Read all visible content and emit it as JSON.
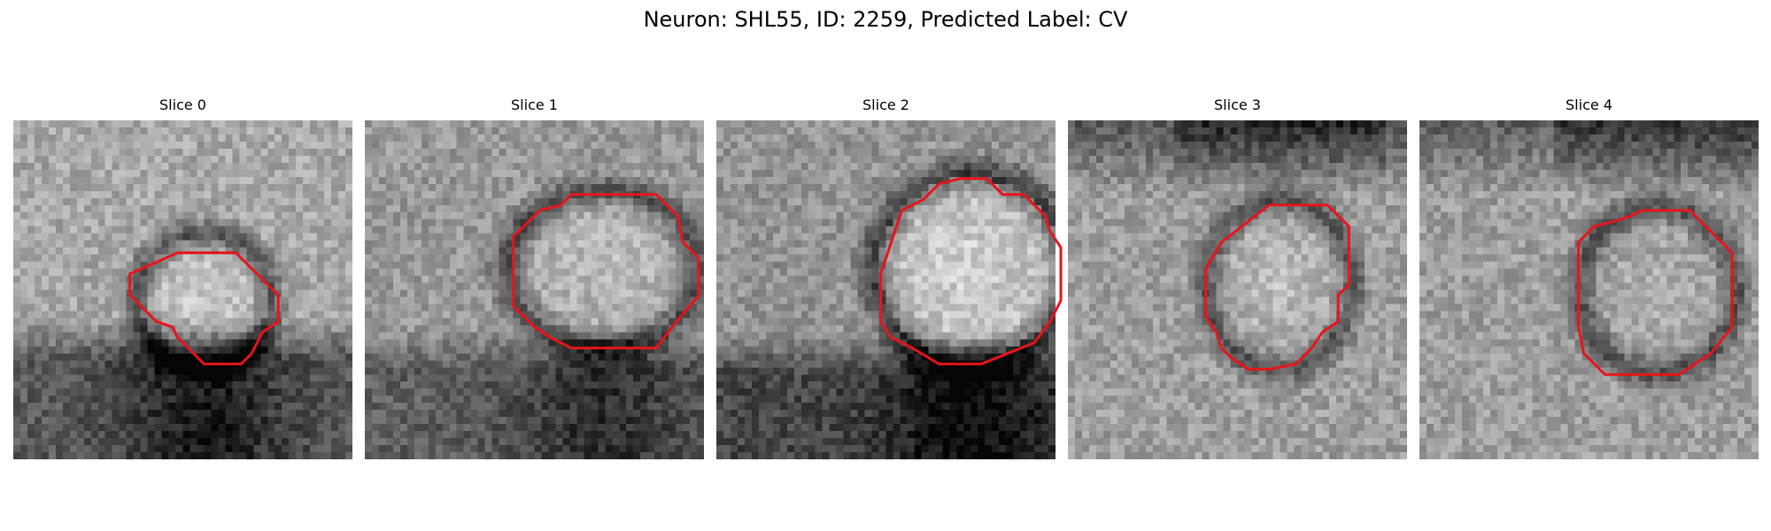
{
  "figure": {
    "title": "Neuron: SHL55, ID: 2259, Predicted Label: CV"
  },
  "colors": {
    "outline": "#e8141a",
    "colormap": "gray"
  },
  "panels": [
    {
      "title": "Slice 0",
      "outline_polygon": [
        [
          38,
          25
        ],
        [
          42,
          25
        ],
        [
          50,
          33
        ],
        [
          50,
          38
        ],
        [
          47,
          40
        ],
        [
          45,
          44
        ],
        [
          43,
          46
        ],
        [
          36,
          46
        ],
        [
          33,
          43
        ],
        [
          31,
          41
        ],
        [
          30,
          39
        ],
        [
          27,
          38
        ],
        [
          22,
          33
        ],
        [
          22,
          29
        ],
        [
          31,
          25
        ]
      ]
    },
    {
      "title": "Slice 1",
      "outline_polygon": [
        [
          43,
          14
        ],
        [
          55,
          14
        ],
        [
          59,
          18
        ],
        [
          60,
          23
        ],
        [
          63,
          26
        ],
        [
          63,
          33
        ],
        [
          58,
          39
        ],
        [
          55,
          43
        ],
        [
          50,
          43
        ],
        [
          39,
          43
        ],
        [
          35,
          41
        ],
        [
          32,
          39
        ],
        [
          28,
          35
        ],
        [
          28,
          22
        ],
        [
          33,
          17
        ],
        [
          37,
          16
        ],
        [
          39,
          14
        ]
      ]
    },
    {
      "title": "Slice 2",
      "outline_polygon": [
        [
          46,
          11
        ],
        [
          51,
          11
        ],
        [
          54,
          14
        ],
        [
          58,
          14
        ],
        [
          62,
          18
        ],
        [
          63,
          21
        ],
        [
          65,
          24
        ],
        [
          65,
          34
        ],
        [
          63,
          38
        ],
        [
          60,
          42
        ],
        [
          55,
          44
        ],
        [
          50,
          46
        ],
        [
          42,
          46
        ],
        [
          37,
          43
        ],
        [
          33,
          41
        ],
        [
          31,
          38
        ],
        [
          31,
          29
        ],
        [
          33,
          23
        ],
        [
          35,
          17
        ],
        [
          39,
          15
        ],
        [
          42,
          12
        ]
      ]
    },
    {
      "title": "Slice 3",
      "outline_polygon": [
        [
          38,
          16
        ],
        [
          49,
          16
        ],
        [
          53,
          20
        ],
        [
          53,
          31
        ],
        [
          51,
          33
        ],
        [
          51,
          38
        ],
        [
          48,
          40
        ],
        [
          46,
          43
        ],
        [
          43,
          46
        ],
        [
          38,
          47
        ],
        [
          34,
          47
        ],
        [
          31,
          45
        ],
        [
          29,
          43
        ],
        [
          28,
          40
        ],
        [
          26,
          37
        ],
        [
          26,
          28
        ],
        [
          29,
          23
        ]
      ]
    },
    {
      "title": "Slice 4",
      "outline_polygon": [
        [
          44,
          17
        ],
        [
          51,
          17
        ],
        [
          55,
          21
        ],
        [
          59,
          25
        ],
        [
          59,
          39
        ],
        [
          55,
          44
        ],
        [
          49,
          48
        ],
        [
          35,
          48
        ],
        [
          31,
          44
        ],
        [
          30,
          39
        ],
        [
          30,
          23
        ],
        [
          33,
          20
        ],
        [
          37,
          19
        ],
        [
          40,
          18
        ],
        [
          42,
          17
        ]
      ]
    }
  ]
}
